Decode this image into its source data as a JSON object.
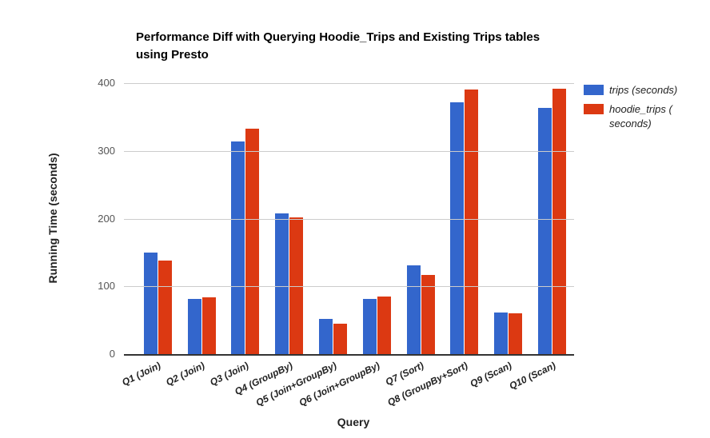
{
  "title_display": "Performance Diff with Querying Hoodie_Trips and Existing Trips tables\nusing Presto",
  "axes": {
    "y_title": "Running Time (seconds)",
    "x_title": "Query",
    "y_ticks": [
      0,
      100,
      200,
      300,
      400
    ]
  },
  "legend": {
    "items": [
      {
        "label": "trips (seconds)",
        "display": "trips (seconds)",
        "color": "#3366cc"
      },
      {
        "label": "hoodie_trips (seconds)",
        "display": "hoodie_trips (\nseconds)",
        "color": "#dc3912"
      }
    ]
  },
  "chart_data": {
    "type": "bar",
    "title": "Performance Diff with Querying Hoodie_Trips and Existing Trips tables using Presto",
    "xlabel": "Query",
    "ylabel": "Running Time (seconds)",
    "ylim": [
      0,
      400
    ],
    "grid": true,
    "legend_position": "top-right",
    "categories": [
      "Q1 (Join)",
      "Q2 (Join)",
      "Q3 (Join)",
      "Q4 (GroupBy)",
      "Q5 (Join+GroupBy)",
      "Q6 (Join+GroupBy)",
      "Q7 (Sort)",
      "Q8 (GroupBy+Sort)",
      "Q9 (Scan)",
      "Q10 (Scan)"
    ],
    "series": [
      {
        "name": "trips (seconds)",
        "key": "trips",
        "color": "#3366cc",
        "values": [
          150,
          81,
          314,
          208,
          52,
          81,
          131,
          372,
          61,
          364
        ]
      },
      {
        "name": "hoodie_trips (seconds)",
        "key": "hoodie_trips",
        "color": "#dc3912",
        "values": [
          138,
          84,
          333,
          202,
          45,
          85,
          117,
          390,
          60,
          392
        ]
      }
    ]
  }
}
